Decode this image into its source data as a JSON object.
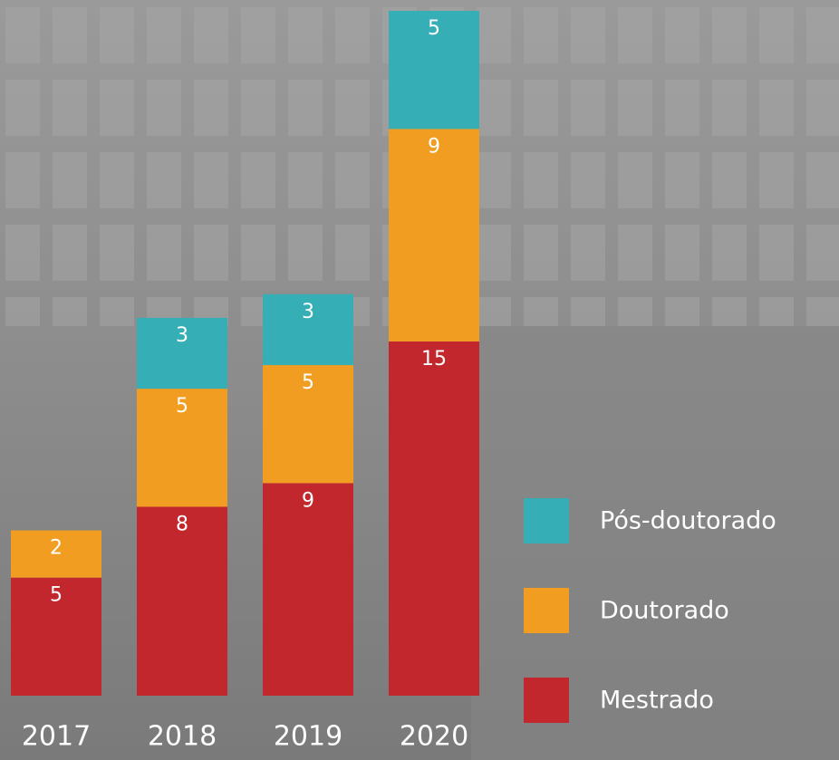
{
  "chart_data": {
    "type": "stacked_bar",
    "categories": [
      "2017",
      "2018",
      "2019",
      "2020"
    ],
    "series": [
      {
        "name": "Mestrado",
        "color": "#c1272d",
        "values": [
          5,
          8,
          9,
          15
        ]
      },
      {
        "name": "Doutorado",
        "color": "#f09d22",
        "values": [
          2,
          5,
          5,
          9
        ]
      },
      {
        "name": "Pós-doutorado",
        "color": "#36aeb5",
        "values": [
          null,
          3,
          3,
          5
        ]
      }
    ]
  }
}
